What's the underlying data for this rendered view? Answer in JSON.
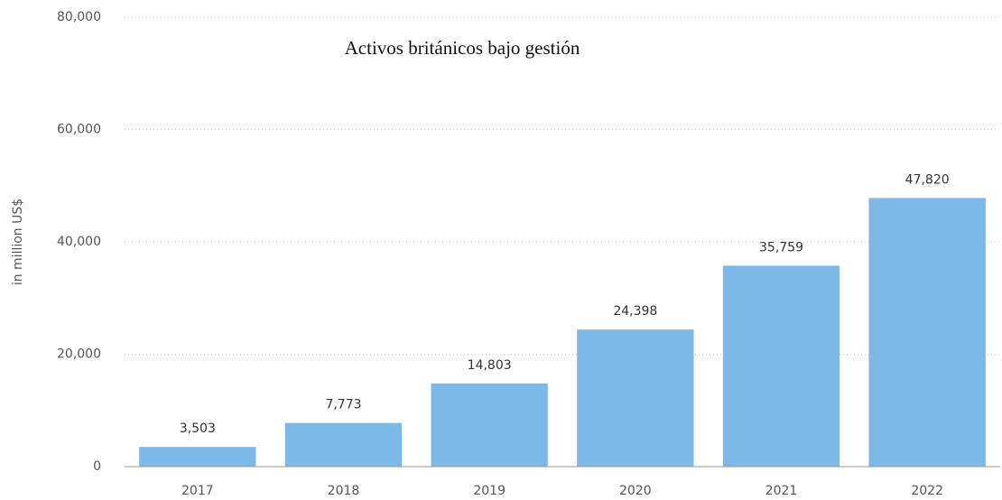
{
  "chart_data": {
    "type": "bar",
    "title": "Activos británicos bajo gestión",
    "y_label": "in million US$",
    "categories": [
      "2017",
      "2018",
      "2019",
      "2020",
      "2021",
      "2022"
    ],
    "values": [
      3503,
      7773,
      14803,
      24398,
      35759,
      47820
    ],
    "value_labels": [
      "3,503",
      "7,773",
      "14,803",
      "24,398",
      "35,759",
      "47,820"
    ],
    "color": "#7cb9e8",
    "ylim": [
      0,
      80000
    ],
    "yticks": [
      0,
      {
        "value": 20000,
        "label": "20,000"
      },
      {
        "value": 40000,
        "label": "40,000"
      },
      {
        "value": 60000,
        "label": "60,000"
      },
      {
        "value": 80000,
        "label": "80,000"
      }
    ],
    "grid": true
  }
}
